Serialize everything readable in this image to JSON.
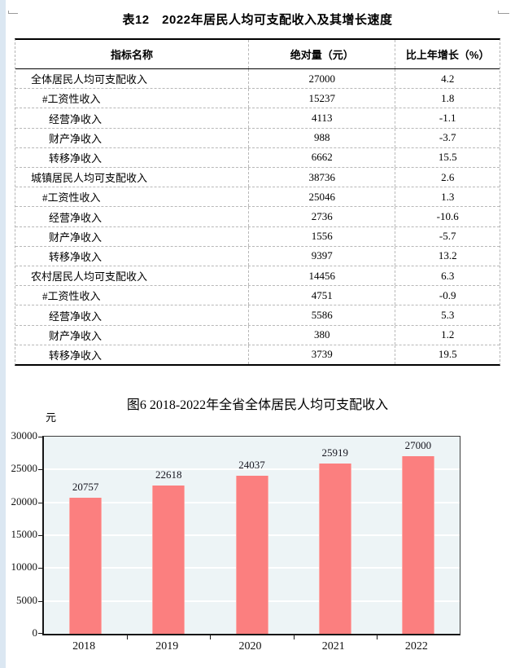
{
  "page": {
    "background": "#ffffff",
    "left_strip_color": "#dbe7f2"
  },
  "table_section": {
    "title": "表12　2022年居民人均可支配收入及其增长速度",
    "columns": [
      "指标名称",
      "绝对量（元）",
      "比上年增长（%）"
    ],
    "rows": [
      {
        "indicator": "全体居民人均可支配收入",
        "level": 1,
        "absolute": "27000",
        "growth": "4.2"
      },
      {
        "indicator": "#工资性收入",
        "level": 2,
        "absolute": "15237",
        "growth": "1.8"
      },
      {
        "indicator": "经营净收入",
        "level": 3,
        "absolute": "4113",
        "growth": "-1.1"
      },
      {
        "indicator": "财产净收入",
        "level": 3,
        "absolute": "988",
        "growth": "-3.7"
      },
      {
        "indicator": "转移净收入",
        "level": 3,
        "absolute": "6662",
        "growth": "15.5"
      },
      {
        "indicator": "城镇居民人均可支配收入",
        "level": 1,
        "absolute": "38736",
        "growth": "2.6"
      },
      {
        "indicator": "#工资性收入",
        "level": 2,
        "absolute": "25046",
        "growth": "1.3"
      },
      {
        "indicator": "经营净收入",
        "level": 3,
        "absolute": "2736",
        "growth": "-10.6"
      },
      {
        "indicator": "财产净收入",
        "level": 3,
        "absolute": "1556",
        "growth": "-5.7"
      },
      {
        "indicator": "转移净收入",
        "level": 3,
        "absolute": "9397",
        "growth": "13.2"
      },
      {
        "indicator": "农村居民人均可支配收入",
        "level": 1,
        "absolute": "14456",
        "growth": "6.3"
      },
      {
        "indicator": "#工资性收入",
        "level": 2,
        "absolute": "4751",
        "growth": "-0.9"
      },
      {
        "indicator": "经营净收入",
        "level": 3,
        "absolute": "5586",
        "growth": "5.3"
      },
      {
        "indicator": "财产净收入",
        "level": 3,
        "absolute": "380",
        "growth": "1.2"
      },
      {
        "indicator": "转移净收入",
        "level": 3,
        "absolute": "3739",
        "growth": "19.5"
      }
    ]
  },
  "chart_data": {
    "type": "bar",
    "title": "图6 2018-2022年全省全体居民人均可支配收入",
    "unit_label": "元",
    "categories": [
      "2018",
      "2019",
      "2020",
      "2021",
      "2022"
    ],
    "values": [
      20757,
      22618,
      24037,
      25919,
      27000
    ],
    "data_labels": [
      "20757",
      "22618",
      "24037",
      "25919",
      "27000"
    ],
    "ylim": [
      0,
      30000
    ],
    "ytick_step": 5000,
    "yticks": [
      "30000",
      "25000",
      "20000",
      "15000",
      "10000",
      "5000",
      "0"
    ],
    "xlabel": "",
    "ylabel": "元",
    "grid": "horizontal-white",
    "legend": "none",
    "bar_color": "#fb7f7f",
    "plot_bg": "#edf4f6"
  }
}
